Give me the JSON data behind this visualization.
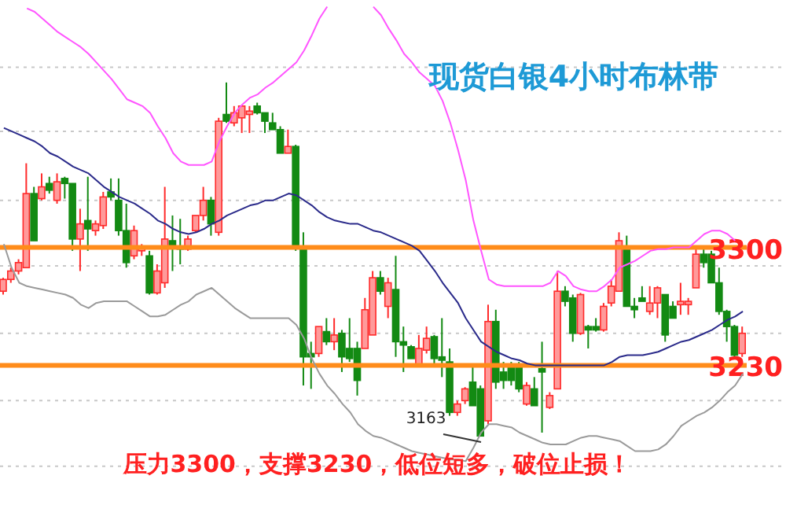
{
  "chart_data": {
    "type": "candlestick",
    "title": "现货白银4小时布林带",
    "annotations": [
      "压力3300，支撑3230，低位短多，破位止损！",
      "3163"
    ],
    "categories": [
      null,
      null,
      null,
      null,
      null,
      null,
      null,
      null,
      null,
      null,
      null,
      null,
      null,
      null,
      null,
      null,
      null,
      null,
      null,
      null,
      null,
      null,
      null,
      null,
      null,
      null,
      null,
      null,
      null,
      null,
      null,
      null,
      null,
      null,
      null,
      null,
      null,
      null,
      null,
      null,
      null,
      null,
      null,
      null,
      null,
      null,
      null,
      null,
      null,
      null,
      null,
      null,
      null,
      null,
      null,
      null,
      null,
      null,
      null,
      null,
      null,
      null,
      null,
      null,
      null,
      null,
      null,
      null,
      null,
      null,
      null,
      null,
      null,
      null,
      null,
      null,
      null,
      null,
      null,
      null,
      null,
      null,
      null,
      null,
      null,
      null,
      null,
      null,
      null,
      null,
      null,
      null,
      null,
      null,
      null,
      null,
      null
    ],
    "ohlc": [
      [
        3274,
        3282,
        3272,
        3281
      ],
      [
        3281,
        3288,
        3279,
        3286
      ],
      [
        3286,
        3293,
        3284,
        3291
      ],
      [
        3288,
        3350,
        3288,
        3332
      ],
      [
        3332,
        3336,
        3304,
        3304
      ],
      [
        3329,
        3344,
        3328,
        3336
      ],
      [
        3338,
        3342,
        3332,
        3334
      ],
      [
        3328,
        3344,
        3326,
        3339
      ],
      [
        3341,
        3342,
        3329,
        3338
      ],
      [
        3338,
        3338,
        3298,
        3305
      ],
      [
        3305,
        3323,
        3286,
        3314
      ],
      [
        3316,
        3342,
        3298,
        3311
      ],
      [
        3310,
        3316,
        3307,
        3314
      ],
      [
        3313,
        3333,
        3311,
        3330
      ],
      [
        3333,
        3341,
        3328,
        3330
      ],
      [
        3328,
        3341,
        3307,
        3310
      ],
      [
        3310,
        3326,
        3288,
        3291
      ],
      [
        3295,
        3313,
        3293,
        3310
      ],
      [
        3298,
        3302,
        3295,
        3300
      ],
      [
        3295,
        3298,
        3272,
        3273
      ],
      [
        3273,
        3290,
        3272,
        3286
      ],
      [
        3279,
        3336,
        3276,
        3305
      ],
      [
        3304,
        3319,
        3286,
        3300
      ],
      [
        3300,
        3317,
        3290,
        3299
      ],
      [
        3299,
        3307,
        3298,
        3305
      ],
      [
        3310,
        3319,
        3309,
        3319
      ],
      [
        3319,
        3336,
        3316,
        3328
      ],
      [
        3328,
        3330,
        3307,
        3314
      ],
      [
        3309,
        3377,
        3307,
        3375
      ],
      [
        3379,
        3398,
        3374,
        3375
      ],
      [
        3374,
        3384,
        3372,
        3380
      ],
      [
        3377,
        3384,
        3368,
        3384
      ],
      [
        3379,
        3384,
        3368,
        3381
      ],
      [
        3384,
        3386,
        3379,
        3380
      ],
      [
        3380,
        3380,
        3368,
        3375
      ],
      [
        3374,
        3380,
        3370,
        3370
      ],
      [
        3370,
        3372,
        3356,
        3356
      ],
      [
        3356,
        3370,
        3356,
        3360
      ],
      [
        3360,
        3361,
        3298,
        3300
      ],
      [
        3300,
        3309,
        3218,
        3235
      ],
      [
        3237,
        3244,
        3216,
        3235
      ],
      [
        3237,
        3253,
        3235,
        3253
      ],
      [
        3250,
        3258,
        3242,
        3244
      ],
      [
        3244,
        3258,
        3239,
        3248
      ],
      [
        3249,
        3251,
        3226,
        3235
      ],
      [
        3240,
        3258,
        3232,
        3234
      ],
      [
        3240,
        3244,
        3212,
        3221
      ],
      [
        3240,
        3270,
        3240,
        3263
      ],
      [
        3248,
        3286,
        3248,
        3282
      ],
      [
        3282,
        3286,
        3272,
        3274
      ],
      [
        3265,
        3282,
        3258,
        3279
      ],
      [
        3275,
        3295,
        3235,
        3244
      ],
      [
        3244,
        3253,
        3226,
        3242
      ],
      [
        3241,
        3242,
        3234,
        3234
      ],
      [
        3230,
        3248,
        3230,
        3240
      ],
      [
        3239,
        3253,
        3237,
        3246
      ],
      [
        3247,
        3248,
        3230,
        3234
      ],
      [
        3235,
        3258,
        3223,
        3233
      ],
      [
        3232,
        3240,
        3200,
        3202
      ],
      [
        3202,
        3209,
        3200,
        3207
      ],
      [
        3209,
        3217,
        3207,
        3216
      ],
      [
        3220,
        3230,
        3206,
        3206
      ],
      [
        3216,
        3218,
        3188,
        3188
      ],
      [
        3197,
        3266,
        3195,
        3256
      ],
      [
        3256,
        3263,
        3216,
        3220
      ],
      [
        3226,
        3232,
        3216,
        3221
      ],
      [
        3230,
        3232,
        3218,
        3221
      ],
      [
        3230,
        3232,
        3214,
        3216
      ],
      [
        3207,
        3220,
        3206,
        3218
      ],
      [
        3216,
        3223,
        3206,
        3206
      ],
      [
        3228,
        3244,
        3190,
        3226
      ],
      [
        3205,
        3214,
        3204,
        3212
      ],
      [
        3216,
        3286,
        3216,
        3274
      ],
      [
        3274,
        3277,
        3265,
        3268
      ],
      [
        3270,
        3272,
        3244,
        3249
      ],
      [
        3249,
        3273,
        3248,
        3272
      ],
      [
        3253,
        3254,
        3240,
        3251
      ],
      [
        3253,
        3258,
        3250,
        3251
      ],
      [
        3251,
        3267,
        3250,
        3265
      ],
      [
        3267,
        3281,
        3265,
        3277
      ],
      [
        3274,
        3309,
        3274,
        3304
      ],
      [
        3300,
        3307,
        3265,
        3265
      ],
      [
        3265,
        3270,
        3258,
        3263
      ],
      [
        3270,
        3277,
        3268,
        3268
      ],
      [
        3262,
        3277,
        3260,
        3267
      ],
      [
        3267,
        3277,
        3258,
        3276
      ],
      [
        3272,
        3272,
        3244,
        3248
      ],
      [
        3265,
        3268,
        3258,
        3258
      ],
      [
        3266,
        3279,
        3260,
        3268
      ],
      [
        3266,
        3270,
        3260,
        3268
      ],
      [
        3276,
        3300,
        3276,
        3296
      ],
      [
        3296,
        3300,
        3288,
        3291
      ],
      [
        3296,
        3298,
        3279,
        3279
      ],
      [
        3279,
        3288,
        3260,
        3262
      ],
      [
        3262,
        3263,
        3244,
        3253
      ],
      [
        3253,
        3254,
        3235,
        3236
      ],
      [
        3237,
        3253,
        3235,
        3249
      ]
    ],
    "series": [
      {
        "type": "line",
        "color": "#ff55ff",
        "values": [
          null,
          null,
          null,
          3442,
          3440,
          3436,
          3432,
          3428,
          3425,
          3422,
          3419,
          3415,
          3410,
          3405,
          3400,
          3394,
          3388,
          3386,
          3384,
          3380,
          3372,
          3365,
          3356,
          3351,
          3349,
          3349,
          3349,
          3351,
          3363,
          3372,
          3380,
          3385,
          3389,
          3391,
          3395,
          3398,
          3402,
          3406,
          3410,
          3417,
          3426,
          3436,
          3443,
          null,
          null,
          null,
          null,
          null,
          3443,
          3438,
          3430,
          3423,
          3415,
          3410,
          3404,
          3400,
          3396,
          3387,
          3374,
          3358,
          3340,
          3316,
          3298,
          3281,
          3278,
          3277,
          3277,
          3277,
          3277,
          3277,
          3277,
          3279,
          3286,
          3283,
          3277,
          3275,
          3274,
          3274,
          3277,
          3281,
          3288,
          3290,
          3292,
          3295,
          3298,
          3299,
          3299,
          3300,
          3300,
          3300,
          3304,
          3308,
          3310,
          3310,
          3308,
          3304,
          null
        ]
      },
      {
        "type": "line",
        "color": "#2a2a8a",
        "values": [
          3371,
          3369,
          3367,
          3365,
          3363,
          3360,
          3356,
          3354,
          3351,
          3348,
          3346,
          3344,
          3340,
          3336,
          3333,
          3330,
          3328,
          3326,
          3323,
          3320,
          3316,
          3314,
          3311,
          3309,
          3308,
          3309,
          3311,
          3314,
          3316,
          3319,
          3321,
          3323,
          3325,
          3326,
          3328,
          3328,
          3330,
          3332,
          3331,
          3328,
          3325,
          3321,
          3318,
          3316,
          3315,
          3314,
          3314,
          3312,
          3310,
          3309,
          3307,
          3305,
          3303,
          3301,
          3298,
          3292,
          3286,
          3279,
          3273,
          3267,
          3258,
          3251,
          3244,
          3241,
          3238,
          3236,
          3234,
          3233,
          3231,
          3230,
          3230,
          3230,
          3230,
          3230,
          3230,
          3230,
          3230,
          3230,
          3230,
          3232,
          3235,
          3236,
          3236,
          3236,
          3237,
          3238,
          3240,
          3242,
          3244,
          3245,
          3247,
          3249,
          3251,
          3254,
          3257,
          3259,
          3262
        ]
      },
      {
        "type": "line",
        "color": "#9a9a9a",
        "values": [
          3302,
          3288,
          3279,
          3277,
          3276,
          3275,
          3274,
          3273,
          3272,
          3270,
          3266,
          3264,
          3267,
          3268,
          3268,
          3268,
          3268,
          3265,
          3262,
          3259,
          3259,
          3260,
          3263,
          3266,
          3268,
          3272,
          3274,
          3276,
          3272,
          3268,
          3264,
          3261,
          3258,
          3258,
          3258,
          3258,
          3258,
          3258,
          3254,
          3246,
          3234,
          3225,
          3218,
          3213,
          3207,
          3202,
          3195,
          3191,
          3188,
          3187,
          3185,
          3183,
          3181,
          3179,
          3178,
          3177,
          3176,
          3175,
          3174,
          3174,
          3173,
          3181,
          3190,
          3195,
          3195,
          3194,
          3193,
          3190,
          3188,
          3186,
          3184,
          3183,
          3183,
          3183,
          3185,
          3187,
          3188,
          3188,
          3187,
          3186,
          3185,
          3182,
          3179,
          3179,
          3179,
          3180,
          3183,
          3188,
          3194,
          3197,
          3200,
          3202,
          3205,
          3209,
          3214,
          3218,
          3225
        ]
      }
    ],
    "ylim": [
      3147,
      3447
    ],
    "yticks": [
      {
        "value": 3407,
        "label": null
      },
      {
        "value": 3369,
        "label": null
      },
      {
        "value": 3328,
        "label": null
      },
      {
        "value": 3289,
        "label": null
      },
      {
        "value": 3249,
        "label": null
      },
      {
        "value": 3209,
        "label": null
      },
      {
        "value": 3170,
        "label": null
      }
    ],
    "grid": "y",
    "tick_labels": false,
    "ref_lines": [
      {
        "axis": "y",
        "value": 3300,
        "label": "3300",
        "color": "#ff8c1a"
      },
      {
        "axis": "y",
        "value": 3230,
        "label": "3230",
        "color": "#ff8c1a"
      }
    ]
  }
}
